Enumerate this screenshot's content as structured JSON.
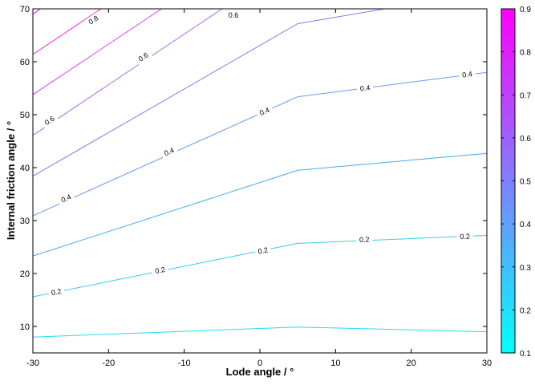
{
  "chart_data": {
    "type": "contour",
    "xlabel": "Lode angle / °",
    "ylabel": "Internal friction angle / °",
    "xlim": [
      -30,
      30
    ],
    "ylim": [
      5,
      70
    ],
    "x_ticks": [
      "-30",
      "-20",
      "-10",
      "0",
      "10",
      "20",
      "30"
    ],
    "y_ticks": [
      "10",
      "20",
      "30",
      "40",
      "50",
      "60",
      "70"
    ],
    "x_tick_values": [
      -30,
      -20,
      -10,
      0,
      10,
      20,
      30
    ],
    "y_tick_values": [
      10,
      20,
      30,
      40,
      50,
      60,
      70
    ],
    "colorbar": {
      "range": [
        0.1,
        0.9
      ],
      "tick_values": [
        0.1,
        0.2,
        0.3,
        0.4,
        0.5,
        0.6,
        0.7,
        0.8,
        0.9
      ],
      "ticks": [
        "0.1",
        "0.2",
        "0.3",
        "0.4",
        "0.5",
        "0.6",
        "0.7",
        "0.8",
        "0.9"
      ],
      "colormap": "cool",
      "color_low": "#00ffff",
      "color_high": "#ff00ff"
    },
    "grid": false,
    "series": [
      {
        "level": 0.1,
        "color": "#22ddee",
        "points": [
          [
            -30,
            8.0
          ],
          [
            5,
            9.9
          ],
          [
            30,
            9.0
          ]
        ],
        "labels": []
      },
      {
        "level": 0.2,
        "color": "#33ccee",
        "points": [
          [
            -30,
            15.6
          ],
          [
            5,
            25.7
          ],
          [
            30,
            27.2
          ]
        ],
        "labels": [
          {
            "text": "0.2",
            "x": -26.9,
            "y": 16.5
          },
          {
            "text": "0.2",
            "x": -13.2,
            "y": 20.6
          },
          {
            "text": "0.2",
            "x": 0.4,
            "y": 24.3
          },
          {
            "text": "0.2",
            "x": 13.8,
            "y": 26.4
          },
          {
            "text": "0.2",
            "x": 27.1,
            "y": 27.0
          }
        ]
      },
      {
        "level": 0.3,
        "color": "#44aaee",
        "points": [
          [
            -30,
            23.3
          ],
          [
            5,
            39.5
          ],
          [
            30,
            42.7
          ]
        ],
        "labels": []
      },
      {
        "level": 0.4,
        "color": "#6699ee",
        "points": [
          [
            -30,
            30.9
          ],
          [
            5,
            53.4
          ],
          [
            30,
            58.0
          ]
        ],
        "labels": [
          {
            "text": "0.4",
            "x": -25.6,
            "y": 34.2
          },
          {
            "text": "0.4",
            "x": -12.0,
            "y": 43.0
          },
          {
            "text": "0.4",
            "x": 0.6,
            "y": 50.6
          },
          {
            "text": "0.4",
            "x": 13.9,
            "y": 55.0
          },
          {
            "text": "0.4",
            "x": 27.4,
            "y": 57.6
          }
        ]
      },
      {
        "level": 0.5,
        "color": "#8877ee",
        "points": [
          [
            -30,
            38.4
          ],
          [
            5,
            67.2
          ],
          [
            16.5,
            70
          ]
        ],
        "labels": []
      },
      {
        "level": 0.6,
        "color": "#aa66ee",
        "points": [
          [
            -30,
            46.1
          ],
          [
            -5,
            70
          ]
        ],
        "labels": [
          {
            "text": "0.6",
            "x": -27.8,
            "y": 48.9
          },
          {
            "text": "0.6",
            "x": -15.4,
            "y": 60.9
          },
          {
            "text": "0.6",
            "x": -3.5,
            "y": 68.8
          }
        ]
      },
      {
        "level": 0.7,
        "color": "#cc44ee",
        "points": [
          [
            -30,
            53.8
          ],
          [
            -13,
            70
          ]
        ],
        "labels": []
      },
      {
        "level": 0.8,
        "color": "#ee22ee",
        "points": [
          [
            -30,
            61.4
          ],
          [
            -21,
            70
          ]
        ],
        "labels": [
          {
            "text": "0.8",
            "x": -22.0,
            "y": 67.9
          }
        ]
      },
      {
        "level": 0.9,
        "color": "#ff00ff",
        "points": [
          [
            -30,
            69.0
          ],
          [
            -29,
            70
          ]
        ],
        "labels": []
      }
    ]
  }
}
